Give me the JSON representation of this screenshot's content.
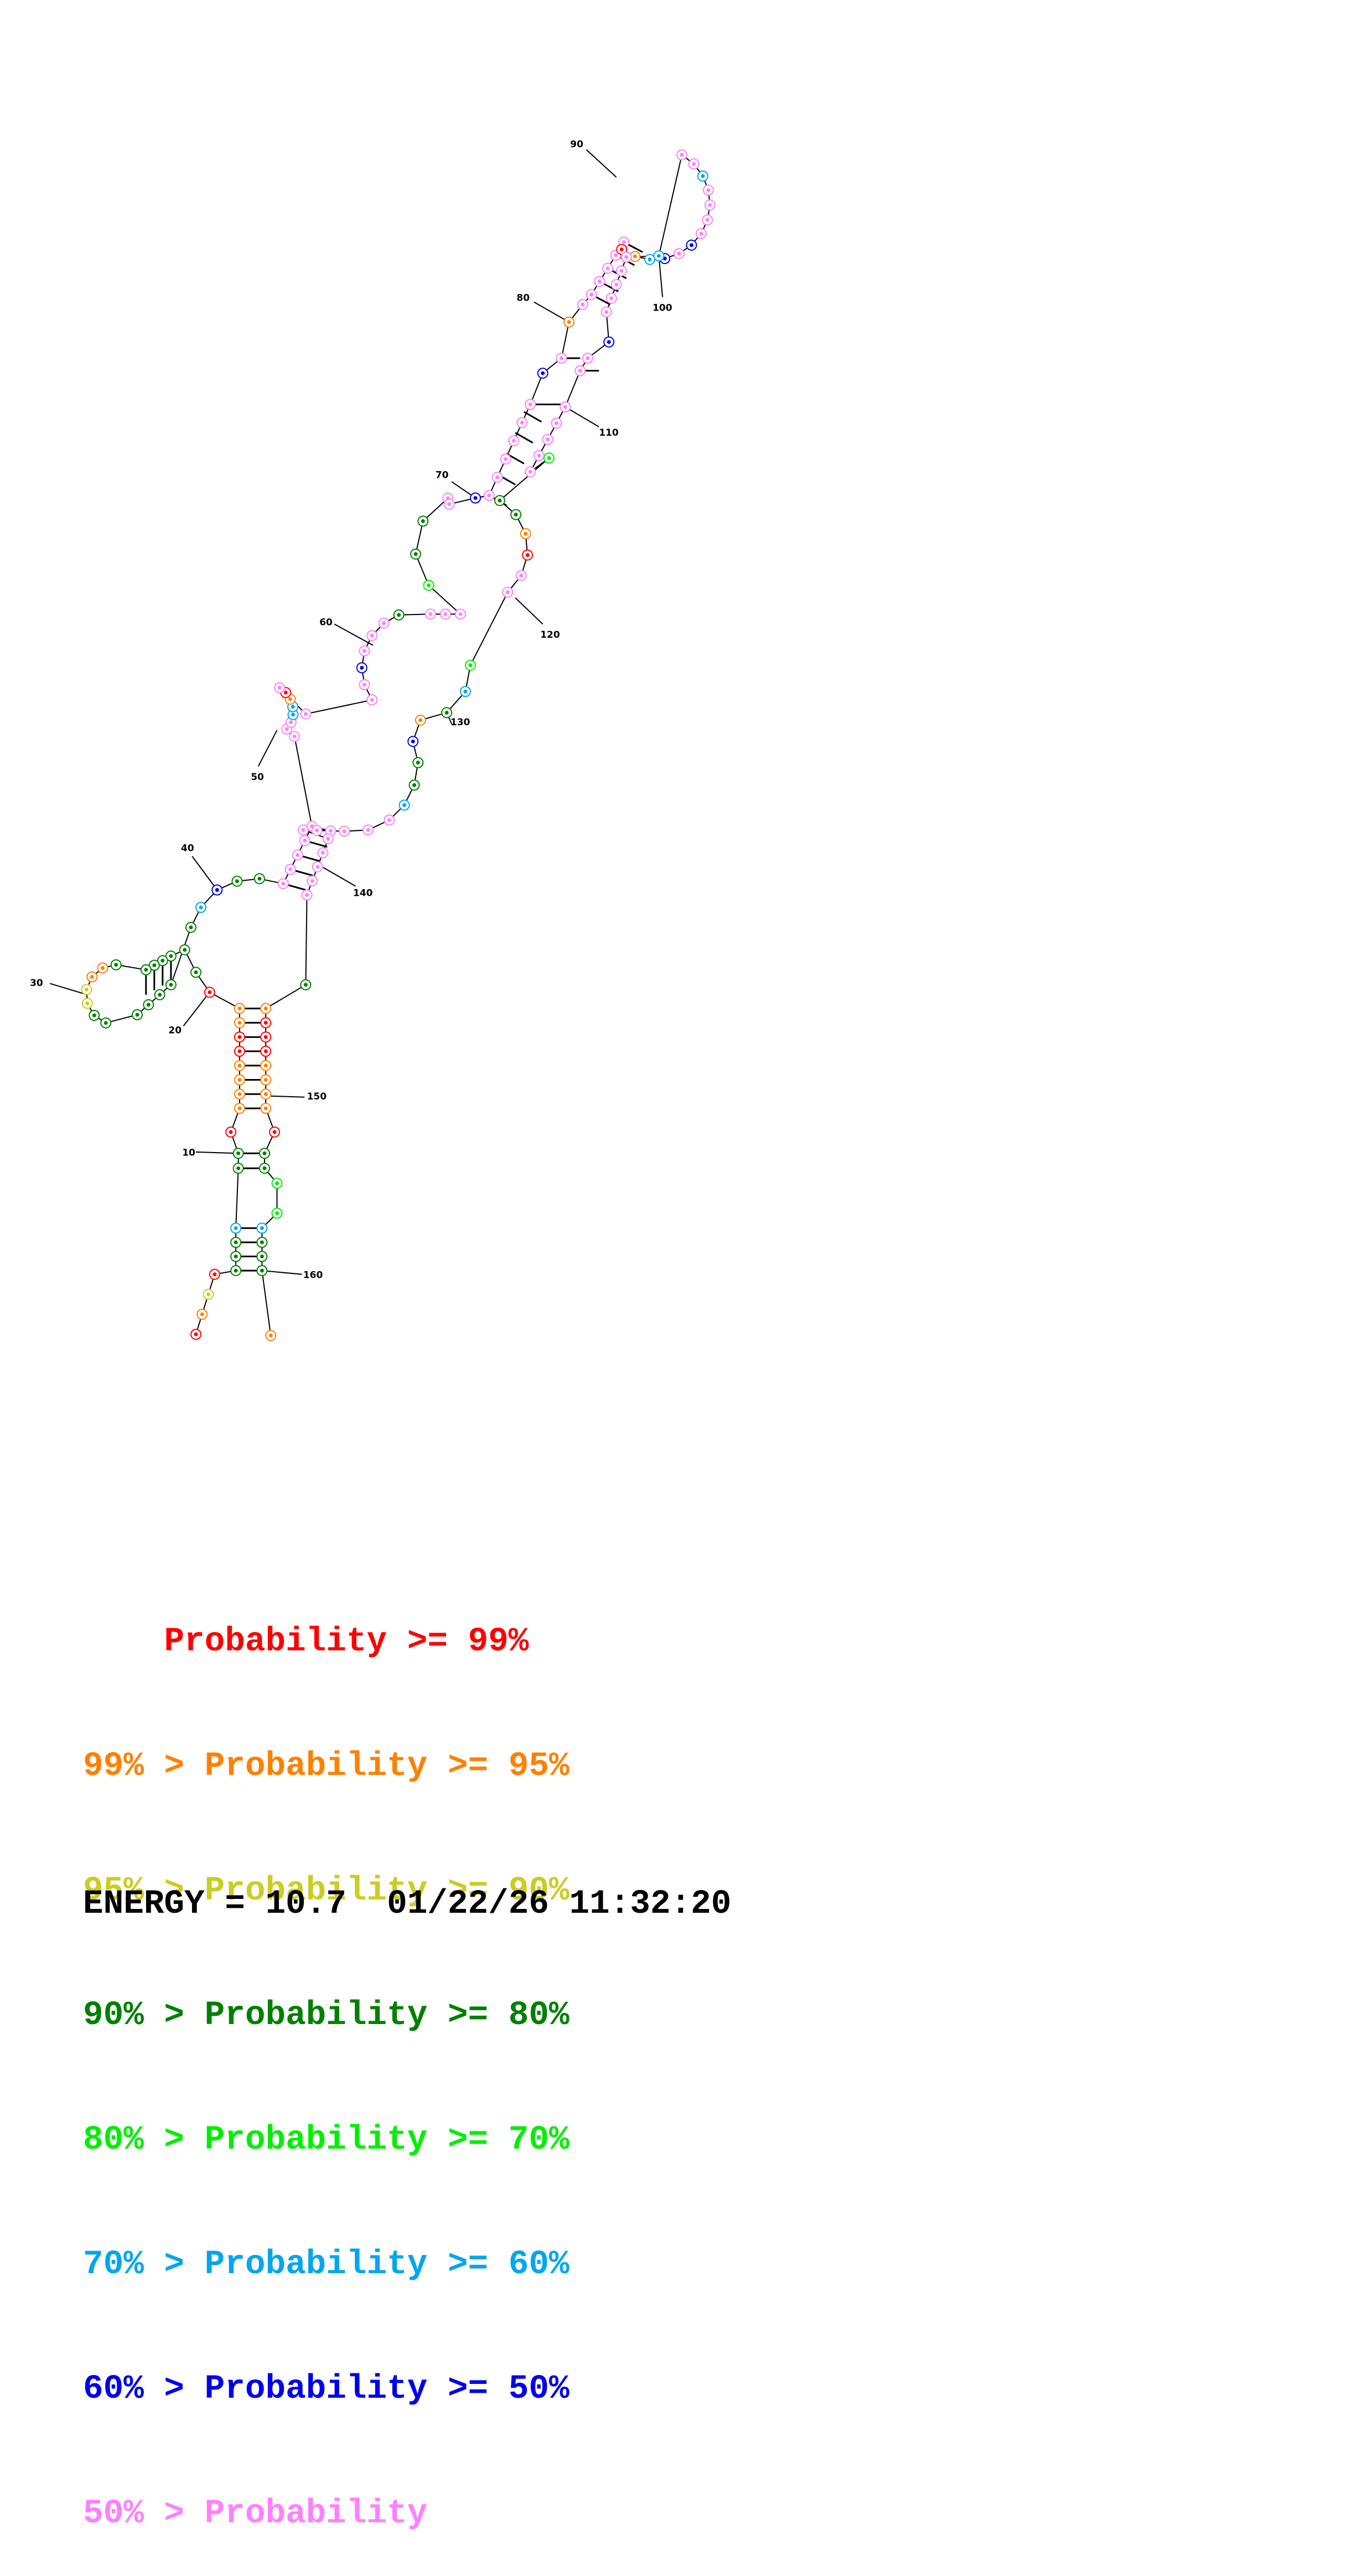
{
  "colors": {
    "p99": "#ff0000",
    "p95": "#ff8000",
    "p90": "#cccc22",
    "p80": "#008000",
    "p70": "#00ee00",
    "p60": "#00a6ee",
    "p50": "#0000ee",
    "plow": "#ff80ff"
  },
  "position_labels": [
    "10",
    "20",
    "30",
    "40",
    "50",
    "60",
    "70",
    "80",
    "90",
    "100",
    "110",
    "120",
    "130",
    "140",
    "150",
    "160"
  ],
  "legend": {
    "row1": {
      "prefix": "    ",
      "text": "Probability >= 99%"
    },
    "row2": {
      "prefix": "99% > ",
      "text": "Probability >= 95%"
    },
    "row3": {
      "prefix": "95% > ",
      "text": "Probability >= 90%"
    },
    "row4": {
      "prefix": "90% > ",
      "text": "Probability >= 80%"
    },
    "row5": {
      "prefix": "80% > ",
      "text": "Probability >= 70%"
    },
    "row6": {
      "prefix": "70% > ",
      "text": "Probability >= 60%"
    },
    "row7": {
      "prefix": "60% > ",
      "text": "Probability >= 50%"
    },
    "row8": {
      "prefix": "50% > ",
      "text": "Probability"
    }
  },
  "energy_line": "ENERGY = 10.7  01/22/26 11:32:20"
}
